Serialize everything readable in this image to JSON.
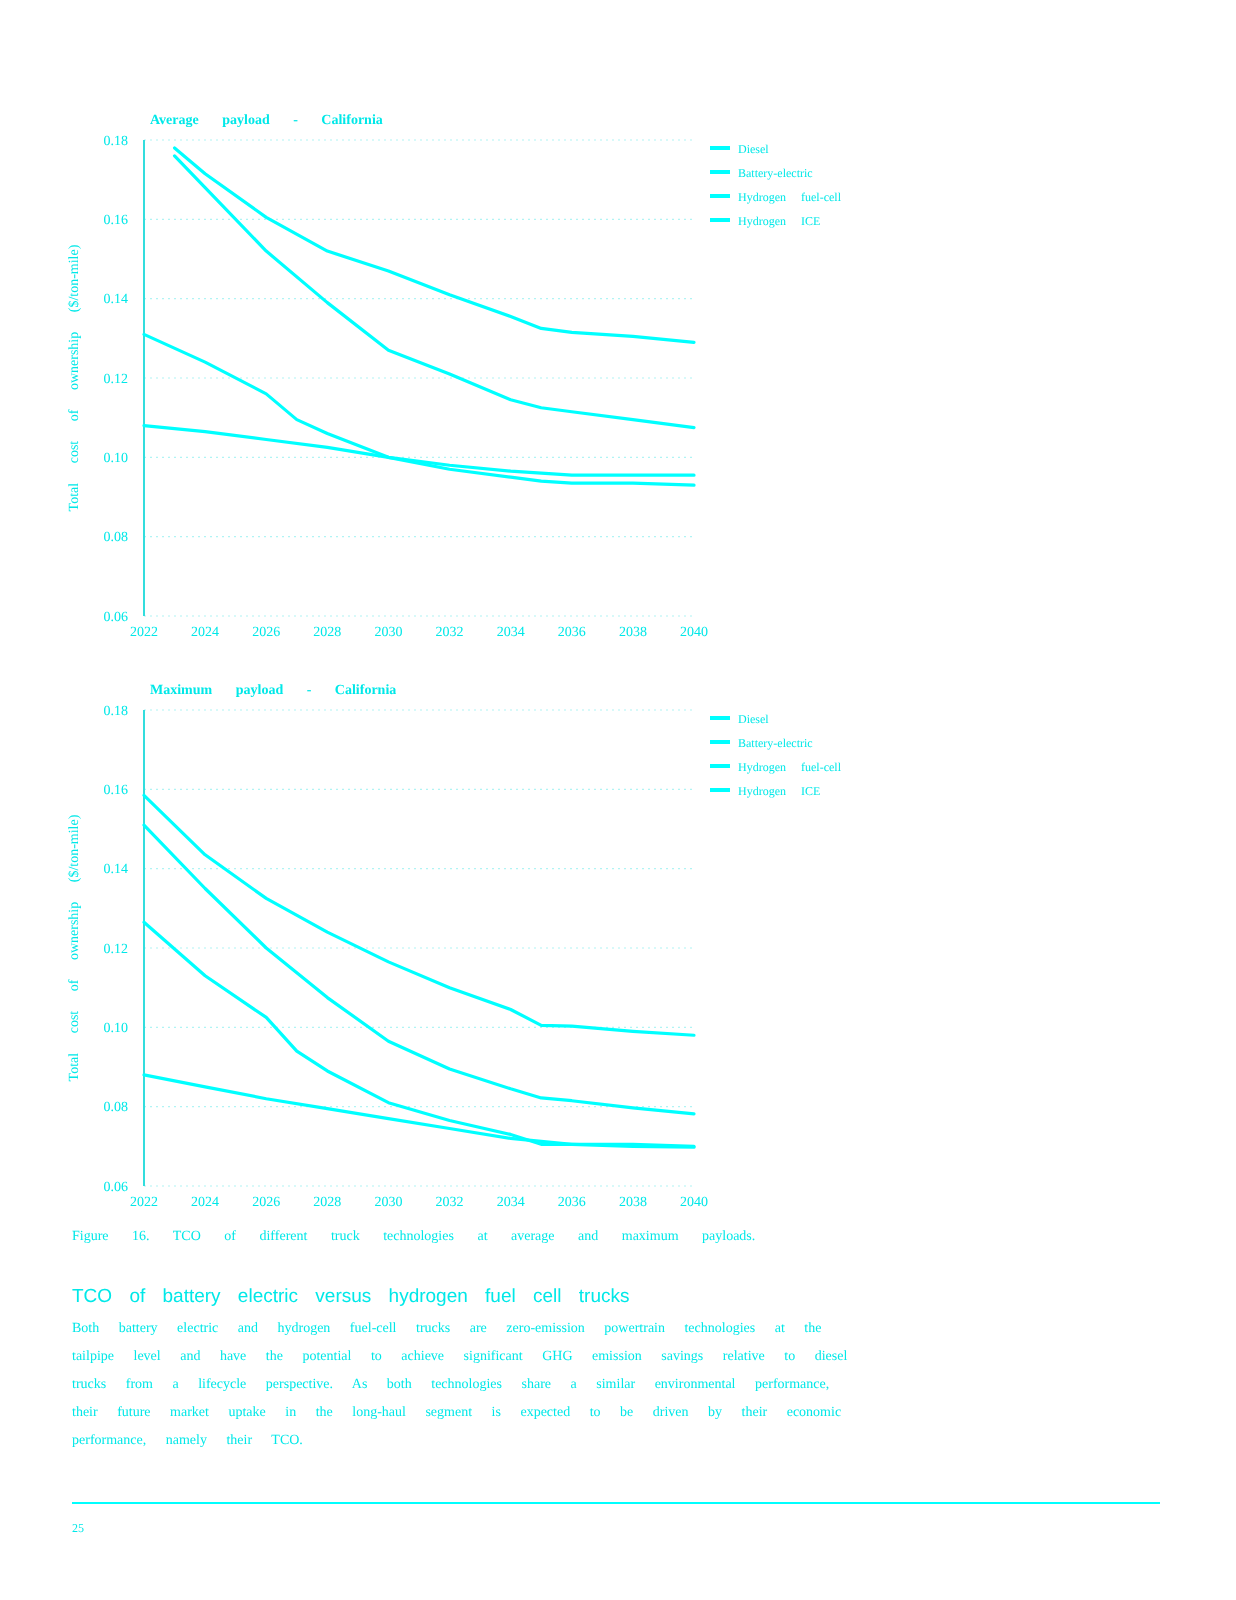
{
  "chart_data": [
    {
      "type": "line",
      "title": "Average payload - California",
      "ylabel": "Total cost of ownership ($/ton-mile)",
      "xlim": [
        2022,
        2040
      ],
      "xticks": [
        2022,
        2024,
        2026,
        2028,
        2030,
        2032,
        2034,
        2036,
        2038,
        2040
      ],
      "ylim": [
        0.06,
        0.18
      ],
      "yticks": [
        {
          "value": 0.06,
          "label": "0.06"
        },
        {
          "value": 0.08,
          "label": "0.08"
        },
        {
          "value": 0.1,
          "label": "0.10"
        },
        {
          "value": 0.12,
          "label": "0.12"
        },
        {
          "value": 0.14,
          "label": "0.14"
        },
        {
          "value": 0.16,
          "label": "0.16"
        },
        {
          "value": 0.18,
          "label": "0.18"
        }
      ],
      "grid": "y",
      "legend": "top right",
      "series": [
        {
          "name": "Diesel",
          "color": "#00ffff",
          "x": [
            2022,
            2024,
            2026,
            2028,
            2030,
            2032,
            2034,
            2036,
            2038,
            2040
          ],
          "values": [
            0.108,
            0.1065,
            0.1045,
            0.1025,
            0.1,
            0.098,
            0.0965,
            0.0955,
            0.0955,
            0.0955
          ]
        },
        {
          "name": "Battery-electric",
          "color": "#00ffff",
          "x": [
            2022,
            2024,
            2026,
            2027,
            2028,
            2030,
            2032,
            2034,
            2035,
            2036,
            2038,
            2040
          ],
          "values": [
            0.131,
            0.124,
            0.116,
            0.1095,
            0.106,
            0.1,
            0.097,
            0.095,
            0.094,
            0.0935,
            0.0935,
            0.093
          ]
        },
        {
          "name": "Hydrogen fuel-cell",
          "color": "#00ffff",
          "x": [
            2023,
            2024,
            2026,
            2028,
            2030,
            2032,
            2034,
            2035,
            2036,
            2038,
            2040
          ],
          "values": [
            0.176,
            0.168,
            0.152,
            0.139,
            0.127,
            0.121,
            0.1145,
            0.1125,
            0.1115,
            0.1095,
            0.1075
          ]
        },
        {
          "name": "Hydrogen ICE",
          "color": "#00ffff",
          "x": [
            2023,
            2024,
            2026,
            2028,
            2030,
            2032,
            2034,
            2035,
            2036,
            2038,
            2040
          ],
          "values": [
            0.178,
            0.1715,
            0.1605,
            0.152,
            0.147,
            0.141,
            0.1355,
            0.1325,
            0.1315,
            0.1305,
            0.129
          ]
        }
      ]
    },
    {
      "type": "line",
      "title": "Maximum payload - California",
      "ylabel": "Total cost of ownership ($/ton-mile)",
      "xlim": [
        2022,
        2040
      ],
      "xticks": [
        2022,
        2024,
        2026,
        2028,
        2030,
        2032,
        2034,
        2036,
        2038,
        2040
      ],
      "ylim": [
        0.06,
        0.18
      ],
      "yticks": [
        {
          "value": 0.06,
          "label": "0.06"
        },
        {
          "value": 0.08,
          "label": "0.08"
        },
        {
          "value": 0.1,
          "label": "0.10"
        },
        {
          "value": 0.12,
          "label": "0.12"
        },
        {
          "value": 0.14,
          "label": "0.14"
        },
        {
          "value": 0.16,
          "label": "0.16"
        },
        {
          "value": 0.18,
          "label": "0.18"
        }
      ],
      "grid": "y",
      "legend": "top right",
      "series": [
        {
          "name": "Diesel",
          "color": "#00ffff",
          "x": [
            2022,
            2024,
            2026,
            2028,
            2030,
            2032,
            2034,
            2036,
            2038,
            2040
          ],
          "values": [
            0.088,
            0.085,
            0.082,
            0.0795,
            0.077,
            0.0745,
            0.072,
            0.0705,
            0.0705,
            0.07
          ]
        },
        {
          "name": "Battery-electric",
          "color": "#00ffff",
          "x": [
            2022,
            2024,
            2026,
            2027,
            2028,
            2030,
            2032,
            2034,
            2035,
            2036,
            2038,
            2040
          ],
          "values": [
            0.1265,
            0.113,
            0.1025,
            0.094,
            0.089,
            0.081,
            0.0765,
            0.073,
            0.0705,
            0.0705,
            0.07,
            0.0698
          ]
        },
        {
          "name": "Hydrogen fuel-cell",
          "color": "#00ffff",
          "x": [
            2022,
            2024,
            2026,
            2028,
            2030,
            2032,
            2034,
            2035,
            2036,
            2038,
            2040
          ],
          "values": [
            0.151,
            0.135,
            0.12,
            0.1075,
            0.0965,
            0.0895,
            0.0845,
            0.0822,
            0.0815,
            0.0797,
            0.0782
          ]
        },
        {
          "name": "Hydrogen ICE",
          "color": "#00ffff",
          "x": [
            2022,
            2024,
            2026,
            2028,
            2030,
            2032,
            2034,
            2035,
            2036,
            2038,
            2040
          ],
          "values": [
            0.1585,
            0.1435,
            0.1325,
            0.124,
            0.1165,
            0.11,
            0.1045,
            0.1005,
            0.1003,
            0.099,
            0.098
          ]
        }
      ],
      "annotations": [
        "Figure 16. TCO of different truck technologies at average and maximum payloads.",
        "TCO of battery electric versus hydrogen fuel cell trucks",
        "Both battery electric and hydrogen fuel-cell trucks are zero-emission powertrain technologies at the tailpipe level and have the potential to achieve significant GHG emission savings relative to diesel trucks from a lifecycle perspective. As both technologies share a similar environmental performance, their future market uptake in the long-haul segment is expected to be driven by their economic performance, namely their TCO.",
        "25"
      ]
    }
  ]
}
